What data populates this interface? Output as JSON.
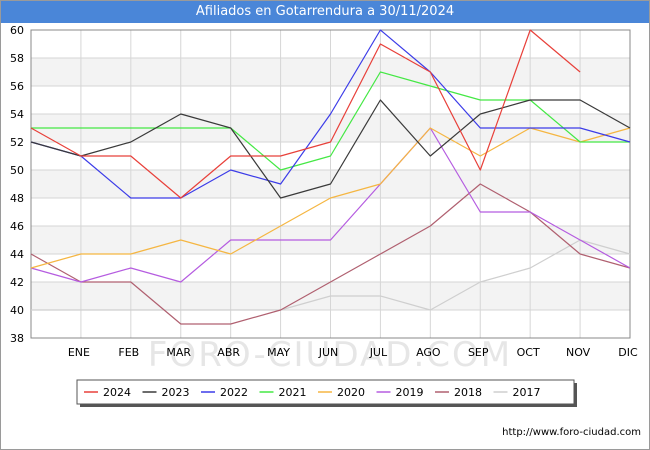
{
  "chart_data": {
    "type": "line",
    "title": "Afiliados en Gotarrendura a 30/11/2024",
    "watermark": "FORO-CIUDAD.COM",
    "source": "http://www.foro-ciudad.com",
    "categories": [
      "ENE",
      "FEB",
      "MAR",
      "ABR",
      "MAY",
      "JUN",
      "JUL",
      "AGO",
      "SEP",
      "OCT",
      "NOV",
      "DIC"
    ],
    "x": [
      0,
      1,
      2,
      3,
      4,
      5,
      6,
      7,
      8,
      9,
      10,
      11,
      12
    ],
    "ylim": [
      38,
      60
    ],
    "yticks": [
      38,
      40,
      42,
      44,
      46,
      48,
      50,
      52,
      54,
      56,
      58,
      60
    ],
    "grid": true,
    "legend_position": "bottom",
    "series": [
      {
        "name": "2024",
        "color": "#e8403a",
        "values": [
          53,
          51,
          51,
          48,
          51,
          51,
          52,
          59,
          57,
          50,
          60,
          57,
          null
        ]
      },
      {
        "name": "2023",
        "color": "#3a3a3a",
        "values": [
          52,
          51,
          52,
          54,
          53,
          48,
          49,
          55,
          51,
          54,
          55,
          55,
          53
        ]
      },
      {
        "name": "2022",
        "color": "#3c3ce8",
        "values": [
          52,
          51,
          48,
          48,
          50,
          49,
          54,
          60,
          57,
          53,
          53,
          53,
          52
        ]
      },
      {
        "name": "2021",
        "color": "#44e844",
        "values": [
          53,
          53,
          53,
          53,
          53,
          50,
          51,
          57,
          56,
          55,
          55,
          52,
          52
        ]
      },
      {
        "name": "2020",
        "color": "#f5b642",
        "values": [
          43,
          44,
          44,
          45,
          44,
          46,
          48,
          49,
          53,
          51,
          53,
          52,
          53
        ]
      },
      {
        "name": "2019",
        "color": "#b55ce0",
        "values": [
          43,
          42,
          43,
          42,
          45,
          45,
          45,
          49,
          53,
          47,
          47,
          45,
          43
        ]
      },
      {
        "name": "2018",
        "color": "#b06070",
        "values": [
          44,
          42,
          42,
          39,
          39,
          40,
          42,
          44,
          46,
          49,
          47,
          44,
          43
        ]
      },
      {
        "name": "2017",
        "color": "#cfcfcf",
        "values": [
          40,
          40,
          40,
          40,
          40,
          40,
          41,
          41,
          40,
          42,
          43,
          45,
          44
        ]
      }
    ]
  }
}
